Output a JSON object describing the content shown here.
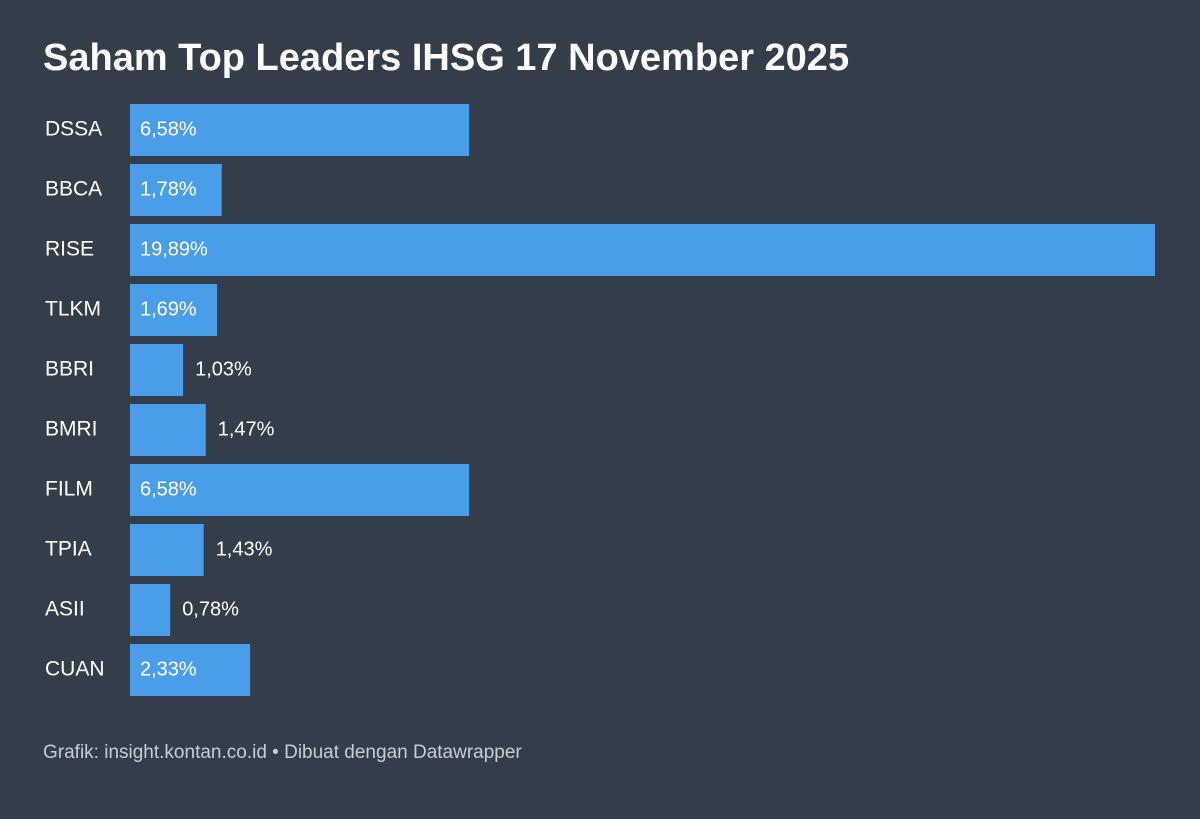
{
  "chart_data": {
    "type": "bar",
    "orientation": "horizontal",
    "title": "Saham Top Leaders IHSG 17 November 2025",
    "categories": [
      "DSSA",
      "BBCA",
      "RISE",
      "TLKM",
      "BBRI",
      "BMRI",
      "FILM",
      "TPIA",
      "ASII",
      "CUAN"
    ],
    "values": [
      6.58,
      1.78,
      19.89,
      1.69,
      1.03,
      1.47,
      6.58,
      1.43,
      0.78,
      2.33
    ],
    "value_labels": [
      "6,58%",
      "1,78%",
      "19,89%",
      "1,69%",
      "1,03%",
      "1,47%",
      "6,58%",
      "1,43%",
      "0,78%",
      "2,33%"
    ],
    "color": "#4a9de8",
    "footer": "Grafik: insight.kontan.co.id • Dibuat dengan Datawrapper"
  }
}
